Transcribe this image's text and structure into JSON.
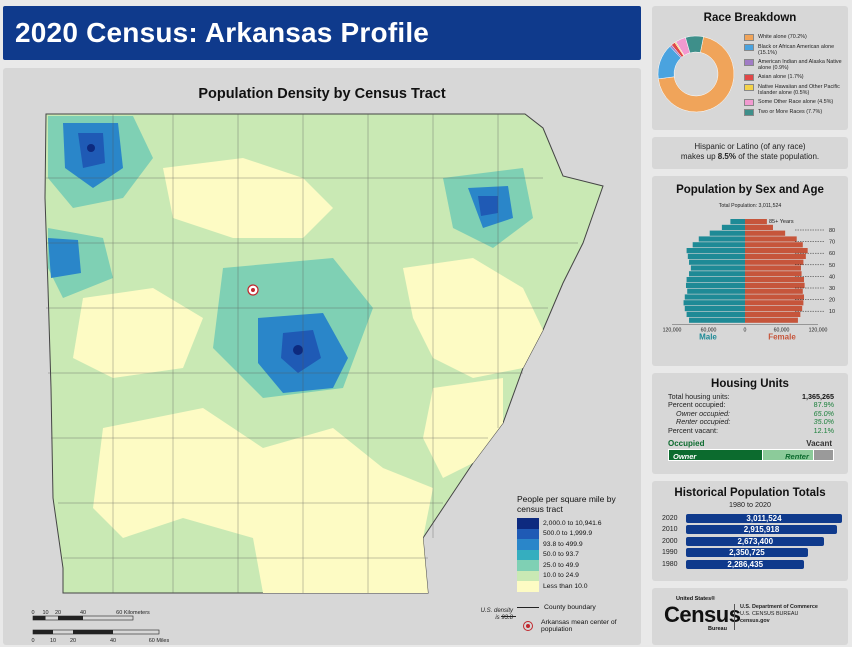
{
  "header": {
    "title": "2020 Census: Arkansas Profile"
  },
  "map": {
    "title": "Population Density by Census Tract",
    "legend_title": "People per square mile by census tract",
    "legend": [
      {
        "label": "2,000.0 to 10,941.6",
        "color": "#0d2a7f"
      },
      {
        "label": "500.0 to 1,999.9",
        "color": "#1f5ab5"
      },
      {
        "label": "93.8 to 499.9",
        "color": "#2a86c9"
      },
      {
        "label": "50.0 to 93.7",
        "color": "#35aebf"
      },
      {
        "label": "25.0 to 49.9",
        "color": "#7fd0b4"
      },
      {
        "label": "10.0 to 24.9",
        "color": "#c9e9b4"
      },
      {
        "label": "Less than 10.0",
        "color": "#fdfbc4"
      }
    ],
    "county_boundary_label": "County boundary",
    "mean_center_label": "Arkansas mean center of population",
    "us_density_label": "U.S. density is 93.8",
    "scale_km": [
      "0",
      "10",
      "20",
      "40",
      "60 Kilometers"
    ],
    "scale_mi": [
      "0",
      "10",
      "20",
      "40",
      "60 Miles"
    ]
  },
  "race": {
    "title": "Race Breakdown",
    "items": [
      {
        "label": "White alone (70.2%)",
        "value": 70.2,
        "color": "#f0a45a"
      },
      {
        "label": "Black or African American alone (15.1%)",
        "value": 15.1,
        "color": "#4aa3df"
      },
      {
        "label": "American Indian and Alaska Native alone (0.9%)",
        "value": 0.9,
        "color": "#a07cc5"
      },
      {
        "label": "Asian alone (1.7%)",
        "value": 1.7,
        "color": "#e04848"
      },
      {
        "label": "Native Hawaiian and Other Pacific Islander alone (0.5%)",
        "value": 0.5,
        "color": "#f3d24a"
      },
      {
        "label": "Some Other Race alone (4.5%)",
        "value": 4.5,
        "color": "#f29ad0"
      },
      {
        "label": "Two or More Races (7.7%)",
        "value": 7.7,
        "color": "#3e8f8a"
      }
    ]
  },
  "hispanic": {
    "line1": "Hispanic or Latino (of any race)",
    "line2_pre": "makes up ",
    "line2_pct": "8.5%",
    "line2_post": " of the state population."
  },
  "pyramid": {
    "title": "Population by Sex and Age",
    "total": "Total Population: 3,011,524",
    "male_label": "Male",
    "female_label": "Female",
    "male_color": "#1e8a96",
    "female_color": "#c6553b",
    "top_label": "85+ Years",
    "age_ticks": [
      "80",
      "70",
      "60",
      "50",
      "40",
      "30",
      "20",
      "10"
    ],
    "x_ticks": [
      "120,000",
      "60,000",
      "0",
      "60,000",
      "120,000"
    ],
    "male": [
      92000,
      96000,
      99000,
      101000,
      99000,
      95000,
      97000,
      96000,
      92000,
      89000,
      92000,
      94000,
      96000,
      86000,
      76000,
      58000,
      38000,
      24000
    ],
    "female": [
      87000,
      91000,
      94000,
      96000,
      97000,
      95000,
      98000,
      97000,
      93000,
      92000,
      96000,
      100000,
      103000,
      95000,
      85000,
      66000,
      46000,
      36000
    ]
  },
  "housing": {
    "title": "Housing Units",
    "rows": [
      {
        "label": "Total housing units:",
        "value": "1,365,265",
        "style": "dark"
      },
      {
        "label": "Percent occupied:",
        "value": "87.9%",
        "style": ""
      },
      {
        "label": "Owner occupied:",
        "value": "65.0%",
        "style": "italic"
      },
      {
        "label": "Renter occupied:",
        "value": "35.0%",
        "style": "italic"
      },
      {
        "label": "Percent vacant:",
        "value": "12.1%",
        "style": ""
      }
    ],
    "occupied_label": "Occupied",
    "vacant_label": "Vacant",
    "owner_label": "Owner",
    "renter_label": "Renter",
    "occupied_pct": 87.9,
    "owner_share": 65.0,
    "vacant_pct": 12.1
  },
  "history": {
    "title": "Historical Population Totals",
    "subtitle": "1980 to 2020",
    "rows": [
      {
        "year": "2020",
        "value": "3,011,524",
        "num": 3011524
      },
      {
        "year": "2010",
        "value": "2,915,918",
        "num": 2915918
      },
      {
        "year": "2000",
        "value": "2,673,400",
        "num": 2673400
      },
      {
        "year": "1990",
        "value": "2,350,725",
        "num": 2350725
      },
      {
        "year": "1980",
        "value": "2,286,435",
        "num": 2286435
      }
    ]
  },
  "logo": {
    "small_top": "United States®",
    "big": "Census",
    "small_bottom": "Bureau",
    "dept1": "U.S. Department of Commerce",
    "dept2": "U.S. CENSUS BUREAU",
    "dept3": "census.gov"
  }
}
